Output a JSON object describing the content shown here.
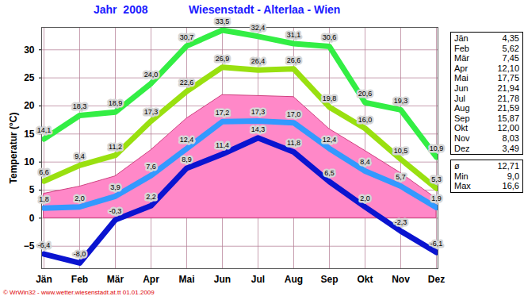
{
  "chart_data": {
    "type": "line",
    "title": "Jahr  2008",
    "subtitle": "Wiesenstadt - Alterlaa - Wien",
    "caption": "© WrWin32 - www.wetter.wiesenstadt.at.tt 01.01.2009",
    "ylabel": "Temperatur (°C)",
    "categories": [
      "Jän",
      "Feb",
      "Mär",
      "Apr",
      "Mai",
      "Jun",
      "Jul",
      "Aug",
      "Sep",
      "Okt",
      "Nov",
      "Dez"
    ],
    "ylim": [
      -9,
      34
    ],
    "yticks": [
      -5,
      0,
      5,
      10,
      15,
      20,
      25,
      30
    ],
    "grid": true,
    "data_labels": true,
    "series": [
      {
        "type": "area",
        "color": "#ff88c8",
        "values": [
          4.35,
          5.62,
          7.45,
          12.1,
          17.75,
          21.94,
          21.78,
          21.59,
          15.87,
          12.0,
          8.03,
          3.49
        ],
        "value_labels": [
          "4,35",
          "5,62",
          "7,45",
          "12,10",
          "17,75",
          "21,94",
          "21,78",
          "21,59",
          "15,87",
          "12,00",
          "8,03",
          "3,49"
        ]
      },
      {
        "type": "line",
        "color": "#33ee44",
        "values": [
          14.1,
          18.3,
          18.9,
          24.0,
          30.7,
          33.5,
          32.4,
          31.1,
          30.6,
          20.6,
          19.3,
          10.9
        ],
        "value_labels": [
          "14,1",
          "18,3",
          "18,9",
          "24,0",
          "30,7",
          "33,5",
          "32,4",
          "31,1",
          "30,6",
          "20,6",
          "19,3",
          "10,9"
        ]
      },
      {
        "type": "line",
        "color": "#99e010",
        "values": [
          6.6,
          9.4,
          11.2,
          17.3,
          22.6,
          26.9,
          26.4,
          26.6,
          19.8,
          16.0,
          10.5,
          5.3
        ],
        "value_labels": [
          "6,6",
          "9,4",
          "11,2",
          "17,3",
          "22,6",
          "26,9",
          "26,4",
          "26,6",
          "19,8",
          "16,0",
          "10,5",
          "5,3"
        ]
      },
      {
        "type": "line",
        "color": "#3399ff",
        "values": [
          1.8,
          2.0,
          3.9,
          7.6,
          12.4,
          17.2,
          17.3,
          17.0,
          12.4,
          8.4,
          5.7,
          1.9
        ],
        "value_labels": [
          "1,8",
          "2,0",
          "3,9",
          "7,6",
          "12,4",
          "17,2",
          "17,3",
          "17,0",
          "12,4",
          "8,4",
          "5,7",
          "1,9"
        ]
      },
      {
        "type": "line",
        "color": "#0a14d0",
        "values": [
          -6.4,
          -8.0,
          -0.3,
          2.2,
          8.9,
          11.4,
          14.3,
          11.8,
          6.5,
          2.0,
          -2.3,
          -6.1
        ],
        "value_labels": [
          "-6,4",
          "-8,0",
          "-0,3",
          "2,2",
          "8,9",
          "11,4",
          "14,3",
          "11,8",
          "6,5",
          "2,0",
          "-2,3",
          "-6,1"
        ]
      }
    ],
    "summary": [
      {
        "label": "ø",
        "value": 12.71,
        "value_label": "12,71"
      },
      {
        "label": "Min",
        "value": 9.0,
        "value_label": "9,0"
      },
      {
        "label": "Max",
        "value": 16.6,
        "value_label": "16,6"
      }
    ]
  }
}
